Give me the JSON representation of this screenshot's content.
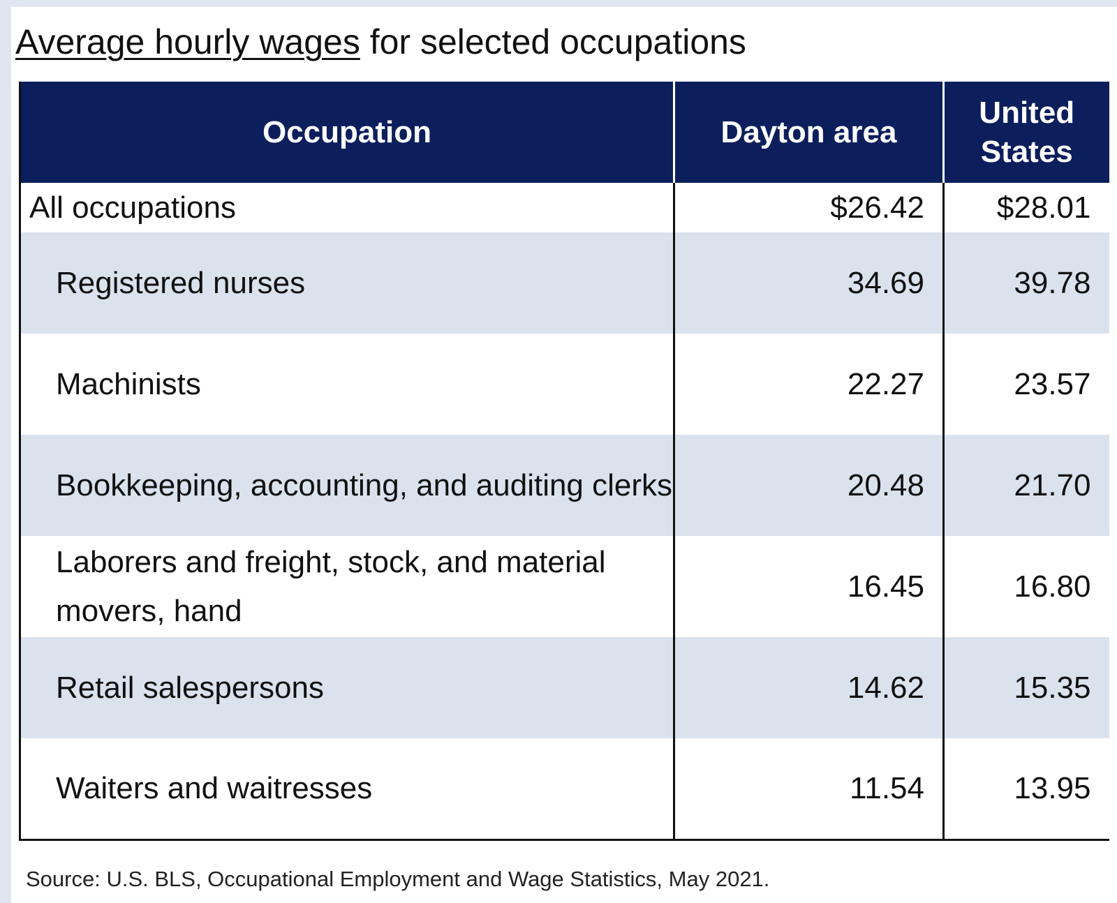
{
  "title": {
    "underlined": "Average hourly wages",
    "rest": " for selected occupations"
  },
  "table": {
    "headers": {
      "occupation": "Occupation",
      "dayton": "Dayton area",
      "us": "United States"
    },
    "rows": [
      {
        "occupation": "All occupations",
        "dayton": "$26.42",
        "us": "$28.01"
      },
      {
        "occupation": "Registered nurses",
        "dayton": "34.69",
        "us": "39.78"
      },
      {
        "occupation": "Machinists",
        "dayton": "22.27",
        "us": "23.57"
      },
      {
        "occupation": "Bookkeeping, accounting, and auditing clerks",
        "dayton": "20.48",
        "us": "21.70"
      },
      {
        "occupation": "Laborers and freight, stock, and material movers, hand",
        "dayton": "16.45",
        "us": "16.80"
      },
      {
        "occupation": "Retail salespersons",
        "dayton": "14.62",
        "us": "15.35"
      },
      {
        "occupation": "Waiters and waitresses",
        "dayton": "11.54",
        "us": "13.95"
      }
    ]
  },
  "source": "Source: U.S. BLS, Occupational Employment and Wage Statistics, May 2021.",
  "colors": {
    "header_bg": "#0c1f5c",
    "row_shade": "#dae2ee",
    "frame": "#dfe6f1"
  }
}
